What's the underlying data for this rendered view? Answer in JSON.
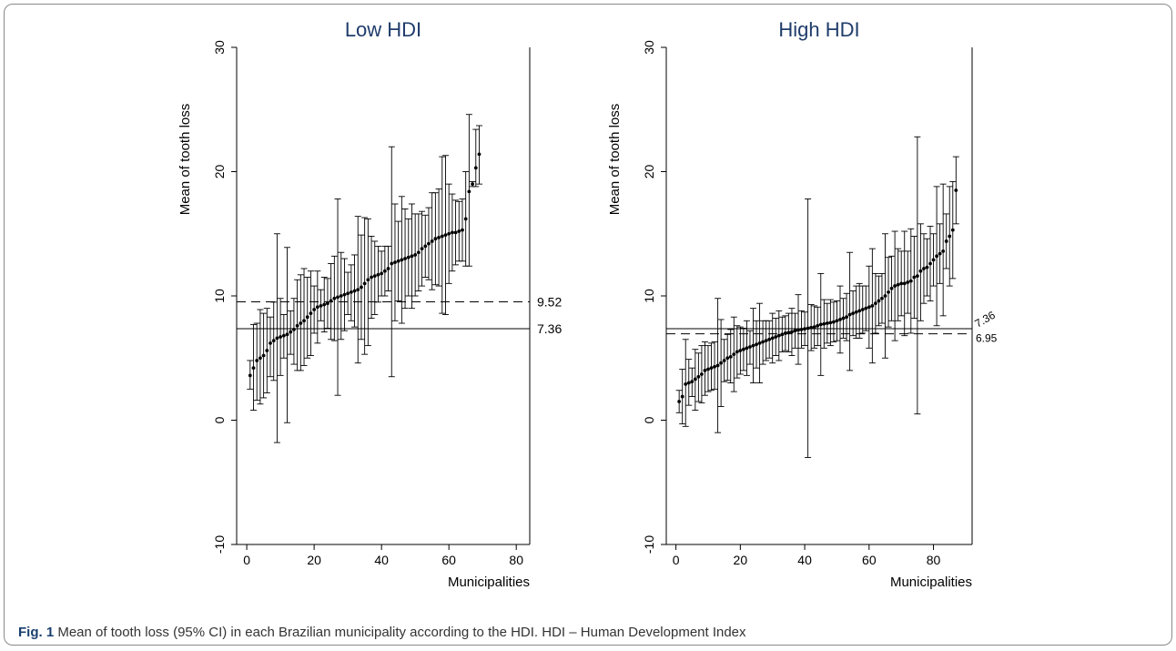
{
  "caption": {
    "label": "Fig. 1",
    "text": " Mean of tooth loss (95% CI) in each Brazilian municipality according to the HDI. HDI – Human Development Index"
  },
  "chart_data": [
    {
      "type": "errorbar",
      "title": "Low HDI",
      "xlabel": "Municipalities",
      "ylabel": "Mean of tooth loss",
      "xlim": [
        -3,
        84
      ],
      "ylim": [
        -10,
        30
      ],
      "xticks": [
        0,
        20,
        40,
        60,
        80
      ],
      "yticks": [
        -10,
        0,
        10,
        20,
        30
      ],
      "reference_lines": [
        {
          "value": 9.52,
          "label": "9.52",
          "style": "dashed"
        },
        {
          "value": 7.36,
          "label": "7.36",
          "style": "solid"
        }
      ],
      "points": [
        {
          "x": 1,
          "y": 3.6,
          "lo": 2.5,
          "hi": 4.8
        },
        {
          "x": 2,
          "y": 4.2,
          "lo": 0.8,
          "hi": 7.7
        },
        {
          "x": 3,
          "y": 4.8,
          "lo": 1.6,
          "hi": 7.8
        },
        {
          "x": 4,
          "y": 5.0,
          "lo": 1.3,
          "hi": 8.9
        },
        {
          "x": 5,
          "y": 5.2,
          "lo": 1.8,
          "hi": 8.6
        },
        {
          "x": 6,
          "y": 5.6,
          "lo": 2.2,
          "hi": 9.0
        },
        {
          "x": 7,
          "y": 6.2,
          "lo": 3.5,
          "hi": 8.3
        },
        {
          "x": 8,
          "y": 6.4,
          "lo": 3.2,
          "hi": 9.5
        },
        {
          "x": 9,
          "y": 6.6,
          "lo": -1.8,
          "hi": 15.0
        },
        {
          "x": 10,
          "y": 6.7,
          "lo": 3.6,
          "hi": 9.8
        },
        {
          "x": 11,
          "y": 6.8,
          "lo": 5.0,
          "hi": 8.5
        },
        {
          "x": 12,
          "y": 6.9,
          "lo": -0.2,
          "hi": 13.9
        },
        {
          "x": 13,
          "y": 7.1,
          "lo": 5.3,
          "hi": 8.8
        },
        {
          "x": 14,
          "y": 7.3,
          "lo": 4.5,
          "hi": 9.8
        },
        {
          "x": 15,
          "y": 7.6,
          "lo": 4.0,
          "hi": 11.3
        },
        {
          "x": 16,
          "y": 7.8,
          "lo": 4.0,
          "hi": 11.7
        },
        {
          "x": 17,
          "y": 8.0,
          "lo": 4.4,
          "hi": 12.2
        },
        {
          "x": 18,
          "y": 8.3,
          "lo": 5.0,
          "hi": 11.5
        },
        {
          "x": 19,
          "y": 8.6,
          "lo": 5.2,
          "hi": 12.0
        },
        {
          "x": 20,
          "y": 8.9,
          "lo": 7.0,
          "hi": 10.8
        },
        {
          "x": 21,
          "y": 9.1,
          "lo": 6.2,
          "hi": 12.0
        },
        {
          "x": 22,
          "y": 9.2,
          "lo": 8.0,
          "hi": 10.5
        },
        {
          "x": 23,
          "y": 9.3,
          "lo": 7.1,
          "hi": 11.5
        },
        {
          "x": 24,
          "y": 9.4,
          "lo": 7.4,
          "hi": 11.4
        },
        {
          "x": 25,
          "y": 9.6,
          "lo": 6.5,
          "hi": 12.6
        },
        {
          "x": 26,
          "y": 9.8,
          "lo": 6.4,
          "hi": 13.2
        },
        {
          "x": 27,
          "y": 9.9,
          "lo": 2.0,
          "hi": 17.8
        },
        {
          "x": 28,
          "y": 10.0,
          "lo": 6.5,
          "hi": 13.5
        },
        {
          "x": 29,
          "y": 10.1,
          "lo": 7.2,
          "hi": 13.0
        },
        {
          "x": 30,
          "y": 10.2,
          "lo": 8.5,
          "hi": 11.9
        },
        {
          "x": 31,
          "y": 10.3,
          "lo": 8.0,
          "hi": 12.5
        },
        {
          "x": 32,
          "y": 10.4,
          "lo": 7.5,
          "hi": 13.3
        },
        {
          "x": 33,
          "y": 10.5,
          "lo": 4.6,
          "hi": 16.4
        },
        {
          "x": 34,
          "y": 10.7,
          "lo": 6.5,
          "hi": 14.9
        },
        {
          "x": 35,
          "y": 11.0,
          "lo": 5.3,
          "hi": 16.3
        },
        {
          "x": 36,
          "y": 11.3,
          "lo": 6.0,
          "hi": 16.2
        },
        {
          "x": 37,
          "y": 11.5,
          "lo": 8.2,
          "hi": 14.8
        },
        {
          "x": 38,
          "y": 11.6,
          "lo": 8.5,
          "hi": 14.4
        },
        {
          "x": 39,
          "y": 11.7,
          "lo": 9.5,
          "hi": 14.0
        },
        {
          "x": 40,
          "y": 11.8,
          "lo": 10.0,
          "hi": 13.6
        },
        {
          "x": 41,
          "y": 12.0,
          "lo": 10.0,
          "hi": 14.0
        },
        {
          "x": 42,
          "y": 12.2,
          "lo": 10.4,
          "hi": 14.0
        },
        {
          "x": 43,
          "y": 12.6,
          "lo": 3.5,
          "hi": 22.0
        },
        {
          "x": 44,
          "y": 12.7,
          "lo": 8.0,
          "hi": 17.4
        },
        {
          "x": 45,
          "y": 12.8,
          "lo": 9.6,
          "hi": 16.0
        },
        {
          "x": 46,
          "y": 12.9,
          "lo": 7.8,
          "hi": 18.0
        },
        {
          "x": 47,
          "y": 13.0,
          "lo": 9.0,
          "hi": 17.0
        },
        {
          "x": 48,
          "y": 13.1,
          "lo": 10.0,
          "hi": 16.2
        },
        {
          "x": 49,
          "y": 13.2,
          "lo": 9.0,
          "hi": 17.4
        },
        {
          "x": 50,
          "y": 13.3,
          "lo": 10.0,
          "hi": 16.6
        },
        {
          "x": 51,
          "y": 13.5,
          "lo": 10.4,
          "hi": 16.6
        },
        {
          "x": 52,
          "y": 13.8,
          "lo": 10.8,
          "hi": 16.8
        },
        {
          "x": 53,
          "y": 14.0,
          "lo": 11.5,
          "hi": 16.5
        },
        {
          "x": 54,
          "y": 14.2,
          "lo": 11.3,
          "hi": 17.1
        },
        {
          "x": 55,
          "y": 14.4,
          "lo": 10.5,
          "hi": 18.3
        },
        {
          "x": 56,
          "y": 14.6,
          "lo": 10.9,
          "hi": 18.3
        },
        {
          "x": 57,
          "y": 14.7,
          "lo": 10.8,
          "hi": 18.6
        },
        {
          "x": 58,
          "y": 14.8,
          "lo": 8.6,
          "hi": 21.2
        },
        {
          "x": 59,
          "y": 14.9,
          "lo": 8.5,
          "hi": 21.3
        },
        {
          "x": 60,
          "y": 15.0,
          "lo": 11.0,
          "hi": 19.0
        },
        {
          "x": 61,
          "y": 15.1,
          "lo": 12.0,
          "hi": 18.2
        },
        {
          "x": 62,
          "y": 15.1,
          "lo": 12.5,
          "hi": 17.7
        },
        {
          "x": 63,
          "y": 15.2,
          "lo": 12.8,
          "hi": 17.6
        },
        {
          "x": 64,
          "y": 15.3,
          "lo": 12.8,
          "hi": 17.8
        },
        {
          "x": 65,
          "y": 16.2,
          "lo": 12.4,
          "hi": 20.0
        },
        {
          "x": 66,
          "y": 18.4,
          "lo": 12.4,
          "hi": 24.6
        },
        {
          "x": 67,
          "y": 19.0,
          "lo": 18.8,
          "hi": 19.2
        },
        {
          "x": 68,
          "y": 20.3,
          "lo": 18.8,
          "hi": 23.4
        },
        {
          "x": 69,
          "y": 21.4,
          "lo": 19.0,
          "hi": 23.7
        }
      ]
    },
    {
      "type": "errorbar",
      "title": "High HDI",
      "xlabel": "Municipalities",
      "ylabel": "Mean of tooth loss",
      "xlim": [
        -3,
        92
      ],
      "ylim": [
        -10,
        30
      ],
      "xticks": [
        0,
        20,
        40,
        60,
        80
      ],
      "yticks": [
        -10,
        0,
        10,
        20,
        30
      ],
      "reference_lines": [
        {
          "value": 7.36,
          "label": "7.36",
          "style": "solid"
        },
        {
          "value": 6.95,
          "label": "6.95",
          "style": "dashed"
        }
      ],
      "points": [
        {
          "x": 1,
          "y": 1.5,
          "lo": 0.6,
          "hi": 2.4
        },
        {
          "x": 2,
          "y": 1.9,
          "lo": -0.3,
          "hi": 4.1
        },
        {
          "x": 3,
          "y": 2.9,
          "lo": -0.5,
          "hi": 6.5
        },
        {
          "x": 4,
          "y": 3.0,
          "lo": 1.2,
          "hi": 4.9
        },
        {
          "x": 5,
          "y": 3.1,
          "lo": 1.9,
          "hi": 4.2
        },
        {
          "x": 6,
          "y": 3.3,
          "lo": 0.8,
          "hi": 5.7
        },
        {
          "x": 7,
          "y": 3.5,
          "lo": 1.5,
          "hi": 5.4
        },
        {
          "x": 8,
          "y": 3.7,
          "lo": 1.4,
          "hi": 6.0
        },
        {
          "x": 9,
          "y": 4.0,
          "lo": 2.0,
          "hi": 6.3
        },
        {
          "x": 10,
          "y": 4.1,
          "lo": 2.3,
          "hi": 6.0
        },
        {
          "x": 11,
          "y": 4.2,
          "lo": 2.4,
          "hi": 6.2
        },
        {
          "x": 12,
          "y": 4.3,
          "lo": 2.5,
          "hi": 6.3
        },
        {
          "x": 13,
          "y": 4.4,
          "lo": -1.0,
          "hi": 9.8
        },
        {
          "x": 14,
          "y": 4.6,
          "lo": 1.1,
          "hi": 8.1
        },
        {
          "x": 15,
          "y": 4.8,
          "lo": 3.1,
          "hi": 6.5
        },
        {
          "x": 16,
          "y": 5.0,
          "lo": 3.2,
          "hi": 6.9
        },
        {
          "x": 17,
          "y": 5.1,
          "lo": 3.0,
          "hi": 7.3
        },
        {
          "x": 18,
          "y": 5.3,
          "lo": 2.3,
          "hi": 8.3
        },
        {
          "x": 19,
          "y": 5.5,
          "lo": 3.4,
          "hi": 7.6
        },
        {
          "x": 20,
          "y": 5.6,
          "lo": 3.7,
          "hi": 7.5
        },
        {
          "x": 21,
          "y": 5.7,
          "lo": 4.0,
          "hi": 7.4
        },
        {
          "x": 22,
          "y": 5.8,
          "lo": 3.6,
          "hi": 8.0
        },
        {
          "x": 23,
          "y": 5.9,
          "lo": 4.5,
          "hi": 7.2
        },
        {
          "x": 24,
          "y": 6.0,
          "lo": 3.0,
          "hi": 9.0
        },
        {
          "x": 25,
          "y": 6.1,
          "lo": 4.2,
          "hi": 8.0
        },
        {
          "x": 26,
          "y": 6.2,
          "lo": 3.0,
          "hi": 9.4
        },
        {
          "x": 27,
          "y": 6.3,
          "lo": 4.5,
          "hi": 8.0
        },
        {
          "x": 28,
          "y": 6.4,
          "lo": 4.8,
          "hi": 8.0
        },
        {
          "x": 29,
          "y": 6.5,
          "lo": 5.0,
          "hi": 8.0
        },
        {
          "x": 30,
          "y": 6.6,
          "lo": 4.6,
          "hi": 8.6
        },
        {
          "x": 31,
          "y": 6.7,
          "lo": 5.2,
          "hi": 8.2
        },
        {
          "x": 32,
          "y": 6.8,
          "lo": 4.8,
          "hi": 8.8
        },
        {
          "x": 33,
          "y": 6.9,
          "lo": 5.5,
          "hi": 8.3
        },
        {
          "x": 34,
          "y": 7.0,
          "lo": 5.6,
          "hi": 8.4
        },
        {
          "x": 35,
          "y": 7.05,
          "lo": 5.5,
          "hi": 8.6
        },
        {
          "x": 36,
          "y": 7.1,
          "lo": 5.2,
          "hi": 9.0
        },
        {
          "x": 37,
          "y": 7.2,
          "lo": 5.8,
          "hi": 8.6
        },
        {
          "x": 38,
          "y": 7.25,
          "lo": 4.5,
          "hi": 10.1
        },
        {
          "x": 39,
          "y": 7.3,
          "lo": 5.8,
          "hi": 8.8
        },
        {
          "x": 40,
          "y": 7.35,
          "lo": 6.0,
          "hi": 8.7
        },
        {
          "x": 41,
          "y": 7.4,
          "lo": -3.0,
          "hi": 17.8
        },
        {
          "x": 42,
          "y": 7.45,
          "lo": 5.6,
          "hi": 9.3
        },
        {
          "x": 43,
          "y": 7.5,
          "lo": 5.8,
          "hi": 9.2
        },
        {
          "x": 44,
          "y": 7.6,
          "lo": 6.0,
          "hi": 9.1
        },
        {
          "x": 45,
          "y": 7.7,
          "lo": 3.6,
          "hi": 11.8
        },
        {
          "x": 46,
          "y": 7.75,
          "lo": 5.8,
          "hi": 9.7
        },
        {
          "x": 47,
          "y": 7.8,
          "lo": 6.2,
          "hi": 9.4
        },
        {
          "x": 48,
          "y": 7.85,
          "lo": 6.0,
          "hi": 9.7
        },
        {
          "x": 49,
          "y": 7.9,
          "lo": 6.3,
          "hi": 9.5
        },
        {
          "x": 50,
          "y": 8.0,
          "lo": 6.4,
          "hi": 9.6
        },
        {
          "x": 51,
          "y": 8.1,
          "lo": 5.4,
          "hi": 10.8
        },
        {
          "x": 52,
          "y": 8.2,
          "lo": 6.6,
          "hi": 9.8
        },
        {
          "x": 53,
          "y": 8.3,
          "lo": 6.4,
          "hi": 10.2
        },
        {
          "x": 54,
          "y": 8.5,
          "lo": 4.0,
          "hi": 13.5
        },
        {
          "x": 55,
          "y": 8.6,
          "lo": 6.8,
          "hi": 10.4
        },
        {
          "x": 56,
          "y": 8.7,
          "lo": 6.6,
          "hi": 10.8
        },
        {
          "x": 57,
          "y": 8.8,
          "lo": 6.6,
          "hi": 11.0
        },
        {
          "x": 58,
          "y": 8.9,
          "lo": 7.0,
          "hi": 10.8
        },
        {
          "x": 59,
          "y": 9.0,
          "lo": 7.2,
          "hi": 10.8
        },
        {
          "x": 60,
          "y": 9.1,
          "lo": 5.8,
          "hi": 12.4
        },
        {
          "x": 61,
          "y": 9.2,
          "lo": 4.6,
          "hi": 13.8
        },
        {
          "x": 62,
          "y": 9.4,
          "lo": 7.0,
          "hi": 11.8
        },
        {
          "x": 63,
          "y": 9.6,
          "lo": 7.6,
          "hi": 11.6
        },
        {
          "x": 64,
          "y": 9.8,
          "lo": 7.8,
          "hi": 11.8
        },
        {
          "x": 65,
          "y": 10.0,
          "lo": 5.0,
          "hi": 15.0
        },
        {
          "x": 66,
          "y": 10.3,
          "lo": 7.5,
          "hi": 13.1
        },
        {
          "x": 67,
          "y": 10.6,
          "lo": 8.0,
          "hi": 13.2
        },
        {
          "x": 68,
          "y": 10.8,
          "lo": 6.4,
          "hi": 15.2
        },
        {
          "x": 69,
          "y": 10.9,
          "lo": 8.0,
          "hi": 13.8
        },
        {
          "x": 70,
          "y": 11.0,
          "lo": 8.4,
          "hi": 13.6
        },
        {
          "x": 71,
          "y": 11.0,
          "lo": 6.8,
          "hi": 15.2
        },
        {
          "x": 72,
          "y": 11.1,
          "lo": 8.6,
          "hi": 13.6
        },
        {
          "x": 73,
          "y": 11.2,
          "lo": 7.0,
          "hi": 15.4
        },
        {
          "x": 74,
          "y": 11.5,
          "lo": 8.2,
          "hi": 14.8
        },
        {
          "x": 75,
          "y": 11.6,
          "lo": 0.5,
          "hi": 22.8
        },
        {
          "x": 76,
          "y": 12.0,
          "lo": 8.0,
          "hi": 15.8
        },
        {
          "x": 77,
          "y": 12.2,
          "lo": 9.4,
          "hi": 15.0
        },
        {
          "x": 78,
          "y": 12.3,
          "lo": 10.0,
          "hi": 14.6
        },
        {
          "x": 79,
          "y": 12.6,
          "lo": 9.6,
          "hi": 15.6
        },
        {
          "x": 80,
          "y": 12.9,
          "lo": 10.8,
          "hi": 15.0
        },
        {
          "x": 81,
          "y": 13.2,
          "lo": 7.6,
          "hi": 18.8
        },
        {
          "x": 82,
          "y": 13.4,
          "lo": 11.0,
          "hi": 15.8
        },
        {
          "x": 83,
          "y": 13.6,
          "lo": 8.4,
          "hi": 19.0
        },
        {
          "x": 84,
          "y": 14.4,
          "lo": 12.2,
          "hi": 16.6
        },
        {
          "x": 85,
          "y": 14.8,
          "lo": 10.8,
          "hi": 18.8
        },
        {
          "x": 86,
          "y": 15.3,
          "lo": 11.4,
          "hi": 19.2
        },
        {
          "x": 87,
          "y": 18.5,
          "lo": 15.8,
          "hi": 21.2
        }
      ]
    }
  ]
}
